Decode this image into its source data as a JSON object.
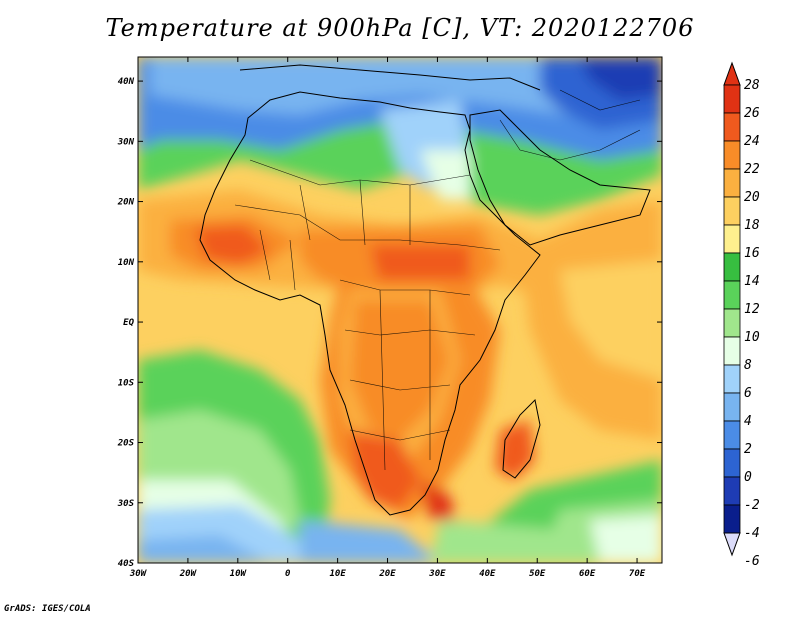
{
  "title": "Temperature at 900hPa [C], VT: 2020122706",
  "credit": "GrADS: IGES/COLA",
  "map": {
    "lon_range": [
      -30,
      75
    ],
    "lat_range": [
      -40,
      44
    ],
    "x_ticks": [
      "30W",
      "20W",
      "10W",
      "0",
      "10E",
      "20E",
      "30E",
      "40E",
      "50E",
      "60E",
      "70E"
    ],
    "x_tick_values": [
      -30,
      -20,
      -10,
      0,
      10,
      20,
      30,
      40,
      50,
      60,
      70
    ],
    "y_ticks": [
      "40N",
      "30N",
      "20N",
      "10N",
      "EQ",
      "10S",
      "20S",
      "30S",
      "40S"
    ],
    "y_tick_values": [
      40,
      30,
      20,
      10,
      0,
      -10,
      -20,
      -30,
      -40
    ]
  },
  "colorbar": {
    "labels": [
      "28",
      "26",
      "24",
      "22",
      "20",
      "18",
      "16",
      "14",
      "12",
      "10",
      "8",
      "6",
      "4",
      "2",
      "0",
      "-2",
      "-4",
      "-6"
    ],
    "colors": [
      "#e03214",
      "#f05a1e",
      "#f88c28",
      "#fbb040",
      "#fdd060",
      "#fef08e",
      "#37be40",
      "#5ad25a",
      "#a0e68c",
      "#e6ffe6",
      "#a0d2fa",
      "#78b4f0",
      "#4b8ce6",
      "#2d64d2",
      "#1e3cb4",
      "#0a1e8c"
    ],
    "top_color": "#e03214",
    "bottom_color": "#dcdcfa"
  }
}
